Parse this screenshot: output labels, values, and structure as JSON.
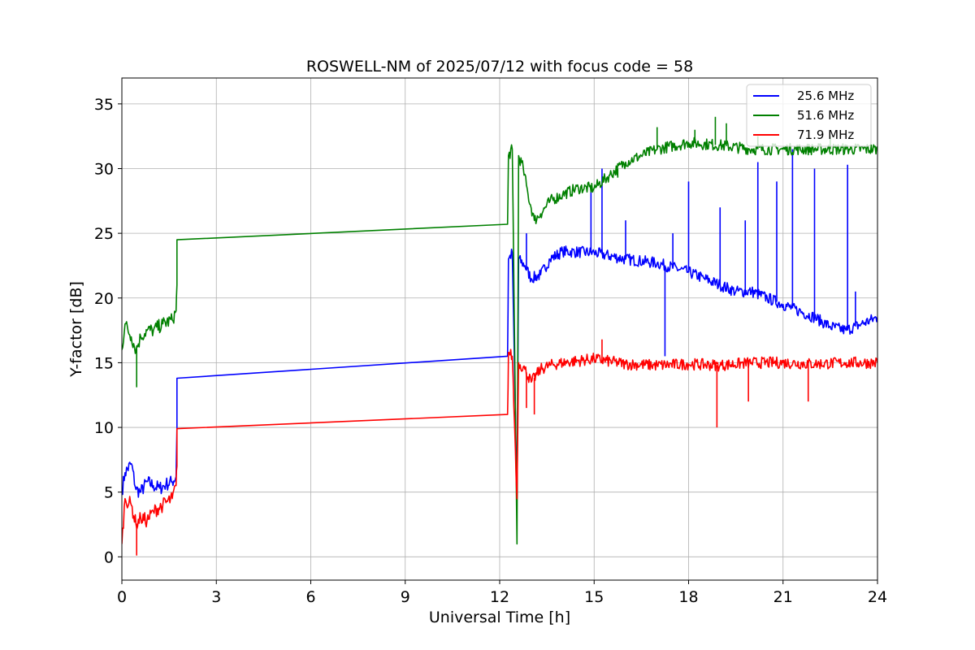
{
  "chart_data": {
    "type": "line",
    "title": "ROSWELL-NM of 2025/07/12 with focus code = 58",
    "xlabel": "Universal Time [h]",
    "ylabel": "Y-factor [dB]",
    "xlim": [
      0,
      24
    ],
    "ylim": [
      -1.8,
      37
    ],
    "xticks": [
      0,
      3,
      6,
      9,
      12,
      15,
      18,
      21,
      24
    ],
    "yticks": [
      0,
      5,
      10,
      15,
      20,
      25,
      30,
      35
    ],
    "grid": true,
    "legend_position": "top-right",
    "series": [
      {
        "name": "25.6 MHz",
        "color": "#0000ff",
        "points": [
          [
            0,
            5.0
          ],
          [
            0.1,
            6.5
          ],
          [
            0.3,
            7.2
          ],
          [
            0.45,
            5.2
          ],
          [
            0.6,
            5.0
          ],
          [
            0.8,
            5.8
          ],
          [
            1.0,
            5.5
          ],
          [
            1.2,
            5.3
          ],
          [
            1.4,
            5.6
          ],
          [
            1.6,
            5.8
          ],
          [
            1.72,
            6.2
          ],
          [
            1.75,
            10.0
          ],
          [
            1.75,
            13.8
          ],
          [
            12.25,
            15.5
          ],
          [
            12.28,
            23.0
          ],
          [
            12.4,
            23.5
          ],
          [
            12.55,
            4.5
          ],
          [
            12.6,
            23.0
          ],
          [
            12.8,
            22.5
          ],
          [
            13.0,
            21.5
          ],
          [
            13.3,
            21.8
          ],
          [
            13.6,
            23.0
          ],
          [
            14.0,
            23.6
          ],
          [
            15.0,
            23.5
          ],
          [
            16.0,
            23.0
          ],
          [
            17.0,
            22.7
          ],
          [
            18.0,
            22.0
          ],
          [
            18.5,
            21.5
          ],
          [
            19.0,
            21.0
          ],
          [
            19.5,
            20.5
          ],
          [
            20.0,
            20.5
          ],
          [
            20.5,
            20.0
          ],
          [
            21.0,
            19.5
          ],
          [
            21.5,
            19.0
          ],
          [
            22.0,
            18.5
          ],
          [
            22.5,
            17.8
          ],
          [
            23.0,
            17.5
          ],
          [
            23.5,
            18.0
          ],
          [
            24.0,
            18.5
          ]
        ],
        "spikes": [
          [
            12.85,
            25.0
          ],
          [
            14.9,
            28.5
          ],
          [
            15.25,
            30.0
          ],
          [
            16.0,
            26.0
          ],
          [
            17.25,
            15.5
          ],
          [
            17.5,
            25.0
          ],
          [
            18.0,
            29.0
          ],
          [
            19.0,
            27.0
          ],
          [
            19.8,
            26.0
          ],
          [
            20.2,
            30.5
          ],
          [
            20.8,
            29.0
          ],
          [
            21.3,
            31.5
          ],
          [
            22.0,
            30.0
          ],
          [
            23.05,
            30.3
          ],
          [
            23.3,
            20.5
          ]
        ]
      },
      {
        "name": "51.6 MHz",
        "color": "#008000",
        "points": [
          [
            0,
            16.0
          ],
          [
            0.1,
            18.0
          ],
          [
            0.3,
            17.0
          ],
          [
            0.45,
            16.0
          ],
          [
            0.6,
            17.0
          ],
          [
            0.8,
            17.5
          ],
          [
            1.0,
            17.5
          ],
          [
            1.3,
            18.0
          ],
          [
            1.6,
            18.3
          ],
          [
            1.72,
            19.0
          ],
          [
            1.75,
            21.0
          ],
          [
            1.75,
            24.5
          ],
          [
            12.25,
            25.7
          ],
          [
            12.28,
            31.0
          ],
          [
            12.4,
            31.5
          ],
          [
            12.55,
            1.0
          ],
          [
            12.6,
            31.0
          ],
          [
            12.75,
            30.0
          ],
          [
            12.9,
            28.0
          ],
          [
            13.1,
            26.0
          ],
          [
            13.3,
            26.5
          ],
          [
            13.6,
            27.5
          ],
          [
            14.0,
            28.0
          ],
          [
            14.5,
            28.5
          ],
          [
            15.0,
            28.5
          ],
          [
            15.5,
            29.5
          ],
          [
            16.0,
            30.5
          ],
          [
            16.5,
            31.0
          ],
          [
            17.0,
            31.5
          ],
          [
            18.0,
            32.0
          ],
          [
            19.0,
            31.8
          ],
          [
            20.0,
            31.5
          ],
          [
            21.0,
            31.5
          ],
          [
            22.0,
            31.5
          ],
          [
            23.0,
            31.5
          ],
          [
            24.0,
            31.5
          ]
        ],
        "spikes": [
          [
            0.47,
            13.1
          ],
          [
            15.75,
            29.3
          ],
          [
            17.0,
            33.2
          ],
          [
            18.2,
            33.0
          ],
          [
            18.85,
            34.0
          ],
          [
            19.2,
            33.5
          ],
          [
            20.2,
            32.5
          ],
          [
            22.5,
            32.5
          ]
        ]
      },
      {
        "name": "71.9 MHz",
        "color": "#ff0000",
        "points": [
          [
            0,
            1.0
          ],
          [
            0.1,
            4.5
          ],
          [
            0.3,
            4.0
          ],
          [
            0.45,
            2.5
          ],
          [
            0.6,
            3.0
          ],
          [
            0.8,
            2.8
          ],
          [
            1.0,
            3.5
          ],
          [
            1.3,
            4.0
          ],
          [
            1.6,
            4.5
          ],
          [
            1.72,
            5.5
          ],
          [
            1.75,
            7.0
          ],
          [
            1.75,
            9.9
          ],
          [
            12.25,
            11.0
          ],
          [
            12.28,
            15.8
          ],
          [
            12.4,
            15.5
          ],
          [
            12.55,
            4.5
          ],
          [
            12.6,
            15.0
          ],
          [
            12.8,
            14.5
          ],
          [
            13.0,
            13.5
          ],
          [
            13.3,
            14.5
          ],
          [
            13.6,
            14.8
          ],
          [
            14.0,
            15.0
          ],
          [
            15.0,
            15.3
          ],
          [
            16.0,
            14.9
          ],
          [
            17.0,
            14.8
          ],
          [
            18.0,
            14.9
          ],
          [
            19.0,
            14.8
          ],
          [
            20.0,
            15.0
          ],
          [
            21.0,
            15.0
          ],
          [
            22.0,
            14.9
          ],
          [
            23.0,
            15.0
          ],
          [
            24.0,
            15.0
          ]
        ],
        "spikes": [
          [
            0.47,
            0.1
          ],
          [
            12.85,
            11.5
          ],
          [
            13.1,
            11.0
          ],
          [
            15.25,
            16.8
          ],
          [
            18.9,
            10.0
          ],
          [
            19.9,
            12.0
          ],
          [
            21.8,
            12.0
          ]
        ]
      }
    ]
  }
}
